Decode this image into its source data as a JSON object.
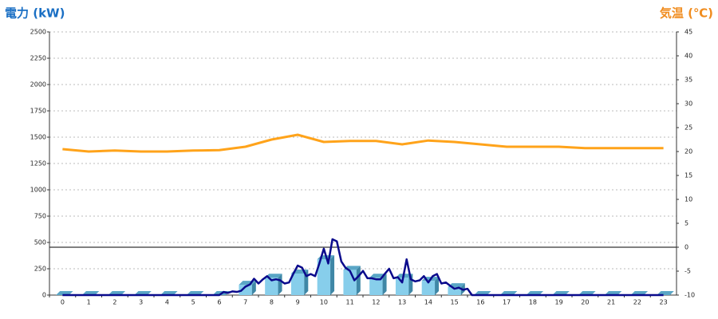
{
  "chart_data": {
    "type": "combo",
    "title": "電力 (kW)",
    "y2_title": "気温 (℃)",
    "categories": [
      "0",
      "1",
      "2",
      "3",
      "4",
      "5",
      "6",
      "7",
      "8",
      "9",
      "10",
      "11",
      "12",
      "13",
      "14",
      "15",
      "16",
      "17",
      "18",
      "19",
      "20",
      "21",
      "22",
      "23"
    ],
    "ylim": [
      0,
      2500
    ],
    "yticks": [
      0,
      250,
      500,
      750,
      1000,
      1250,
      1500,
      1750,
      2000,
      2250,
      2500
    ],
    "y2lim": [
      -10,
      45
    ],
    "y2ticks": [
      -10,
      -5,
      0,
      5,
      10,
      15,
      20,
      25,
      30,
      35,
      40,
      45
    ],
    "grid": true,
    "y2_baseline": 0,
    "series": [
      {
        "type": "bar",
        "color": "#87ceeb",
        "values": [
          0,
          0,
          0,
          0,
          0,
          0,
          0,
          98,
          165,
          205,
          340,
          240,
          165,
          165,
          135,
          75,
          0,
          0,
          0,
          0,
          0,
          0,
          0,
          0
        ]
      },
      {
        "type": "line",
        "color": "#0a0a8c",
        "x": [
          0,
          6,
          6.17,
          6.33,
          6.5,
          6.67,
          6.83,
          7,
          7.17,
          7.33,
          7.5,
          7.67,
          7.83,
          8,
          8.17,
          8.33,
          8.5,
          8.67,
          8.83,
          9,
          9.17,
          9.33,
          9.5,
          9.67,
          9.83,
          10,
          10.17,
          10.33,
          10.5,
          10.67,
          10.83,
          11,
          11.17,
          11.33,
          11.5,
          11.67,
          11.83,
          12,
          12.17,
          12.33,
          12.5,
          12.67,
          12.83,
          13,
          13.17,
          13.33,
          13.5,
          13.67,
          13.83,
          14,
          14.17,
          14.33,
          14.5,
          14.67,
          14.83,
          15,
          15.17,
          15.33,
          15.5,
          15.67,
          23
        ],
        "values": [
          0,
          0,
          30,
          20,
          35,
          30,
          40,
          80,
          100,
          155,
          110,
          150,
          180,
          140,
          150,
          140,
          110,
          120,
          200,
          280,
          260,
          180,
          200,
          180,
          300,
          440,
          300,
          530,
          510,
          320,
          260,
          230,
          140,
          180,
          230,
          160,
          160,
          150,
          150,
          200,
          250,
          160,
          170,
          120,
          340,
          150,
          130,
          140,
          180,
          120,
          180,
          200,
          110,
          120,
          90,
          60,
          70,
          50,
          60,
          0,
          0
        ]
      },
      {
        "type": "line",
        "axis": "y2",
        "color": "#ffa31a",
        "values": [
          20.5,
          20,
          20.2,
          20,
          20,
          20.2,
          20.3,
          21,
          22.5,
          23.5,
          22,
          22.2,
          22.2,
          21.5,
          22.3,
          22,
          21.5,
          21,
          21,
          21,
          20.7,
          20.7,
          20.7,
          20.7
        ]
      }
    ]
  }
}
